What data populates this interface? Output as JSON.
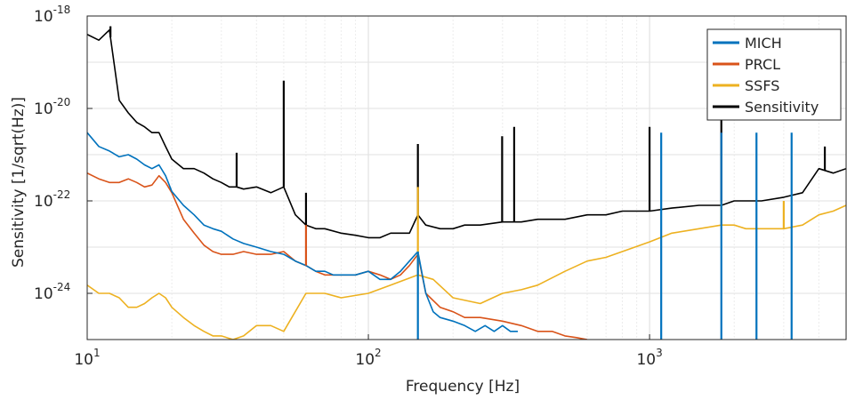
{
  "chart_data": {
    "type": "line",
    "title": "",
    "xlabel": "Frequency [Hz]",
    "ylabel": "Sensitivity [1/sqrt(Hz)]",
    "x_scale": "log",
    "y_scale": "log",
    "xlim": [
      10,
      5000
    ],
    "ylim": [
      1e-25,
      1e-18
    ],
    "grid": true,
    "legend_position": "top-right",
    "x_ticks": [
      {
        "value": 10,
        "base": "10",
        "exp": "1"
      },
      {
        "value": 100,
        "base": "10",
        "exp": "2"
      },
      {
        "value": 1000,
        "base": "10",
        "exp": "3"
      }
    ],
    "y_ticks": [
      {
        "value": 1e-24,
        "base": "10",
        "exp": "-24"
      },
      {
        "value": 1e-22,
        "base": "10",
        "exp": "-22"
      },
      {
        "value": 1e-20,
        "base": "10",
        "exp": "-20"
      },
      {
        "value": 1e-18,
        "base": "10",
        "exp": "-18"
      }
    ],
    "series": [
      {
        "name": "MICH",
        "color": "#0072BD",
        "x": [
          10,
          11,
          12,
          13,
          14,
          15,
          16,
          17,
          18,
          19,
          20,
          22,
          24,
          26,
          28,
          30,
          33,
          36,
          40,
          45,
          50,
          55,
          60,
          65,
          70,
          75,
          80,
          90,
          100,
          110,
          120,
          130,
          140,
          150,
          160,
          170,
          180,
          200,
          220,
          240,
          260,
          280,
          300,
          320,
          340
        ],
        "y": [
          3e-21,
          1.5e-21,
          1.2e-21,
          9e-22,
          1e-21,
          8e-22,
          6e-22,
          5e-22,
          6e-22,
          3.5e-22,
          1.6e-22,
          8e-23,
          5e-23,
          3e-23,
          2.5e-23,
          2.2e-23,
          1.5e-23,
          1.2e-23,
          1e-23,
          8e-24,
          7e-24,
          5e-24,
          4e-24,
          3e-24,
          3e-24,
          2.5e-24,
          2.5e-24,
          2.5e-24,
          3e-24,
          2e-24,
          2e-24,
          3e-24,
          5e-24,
          8e-24,
          1e-24,
          4e-25,
          3e-25,
          2.5e-25,
          2e-25,
          1.5e-25,
          2e-25,
          1.5e-25,
          2e-25,
          1.5e-25,
          1.5e-25
        ]
      },
      {
        "name": "PRCL",
        "color": "#D95319",
        "x": [
          10,
          11,
          12,
          13,
          14,
          15,
          16,
          17,
          18,
          19,
          20,
          22,
          24,
          26,
          28,
          30,
          33,
          36,
          40,
          45,
          50,
          55,
          60,
          65,
          70,
          80,
          90,
          100,
          110,
          120,
          130,
          140,
          150,
          160,
          180,
          200,
          220,
          250,
          300,
          350,
          400,
          450,
          500,
          550,
          600
        ],
        "y": [
          4e-22,
          3e-22,
          2.5e-22,
          2.5e-22,
          3e-22,
          2.5e-22,
          2e-22,
          2.2e-22,
          3.5e-22,
          2.5e-22,
          1.5e-22,
          4e-23,
          2e-23,
          1.1e-23,
          8e-24,
          7e-24,
          7e-24,
          8e-24,
          7e-24,
          7e-24,
          8e-24,
          5e-24,
          4e-24,
          3e-24,
          2.5e-24,
          2.5e-24,
          2.5e-24,
          3e-24,
          2.5e-24,
          2e-24,
          2.5e-24,
          4e-24,
          7e-24,
          1e-24,
          5e-25,
          4e-25,
          3e-25,
          3e-25,
          2.5e-25,
          2e-25,
          1.5e-25,
          1.5e-25,
          1.2e-25,
          1.1e-25,
          1e-25
        ]
      },
      {
        "name": "SSFS",
        "color": "#EDB120",
        "x": [
          10,
          11,
          12,
          13,
          14,
          15,
          16,
          17,
          18,
          19,
          20,
          22,
          24,
          26,
          28,
          30,
          33,
          36,
          40,
          45,
          50,
          60,
          70,
          80,
          100,
          120,
          150,
          170,
          200,
          250,
          300,
          350,
          400,
          500,
          600,
          700,
          800,
          1000,
          1200,
          1500,
          1800,
          2000,
          2200,
          2500,
          3000,
          3500,
          4000,
          4500,
          5000
        ],
        "y": [
          1.5e-24,
          1e-24,
          1e-24,
          8e-25,
          5e-25,
          5e-25,
          6e-25,
          8e-25,
          1e-24,
          8e-25,
          5e-25,
          3e-25,
          2e-25,
          1.5e-25,
          1.2e-25,
          1.2e-25,
          1e-25,
          1.2e-25,
          2e-25,
          2e-25,
          1.5e-25,
          1e-24,
          1e-24,
          8e-25,
          1e-24,
          1.5e-24,
          2.5e-24,
          2e-24,
          8e-25,
          6e-25,
          1e-24,
          1.2e-24,
          1.5e-24,
          3e-24,
          5e-24,
          6e-24,
          8e-24,
          1.3e-23,
          2e-23,
          2.5e-23,
          3e-23,
          3e-23,
          2.5e-23,
          2.5e-23,
          2.5e-23,
          3e-23,
          5e-23,
          6e-23,
          8e-23
        ]
      },
      {
        "name": "Sensitivity",
        "color": "#000000",
        "x": [
          10,
          11,
          12,
          13,
          14,
          15,
          16,
          17,
          18,
          19,
          20,
          22,
          24,
          26,
          28,
          30,
          32,
          34,
          36,
          40,
          45,
          50,
          55,
          60,
          65,
          70,
          80,
          90,
          100,
          110,
          120,
          140,
          150,
          160,
          180,
          200,
          220,
          250,
          300,
          350,
          400,
          500,
          600,
          700,
          800,
          1000,
          1200,
          1500,
          1800,
          2000,
          2500,
          3000,
          3500,
          4000,
          4500,
          5000
        ],
        "y": [
          4e-19,
          3e-19,
          5e-19,
          1.5e-20,
          8e-21,
          5e-21,
          4e-21,
          3e-21,
          3e-21,
          1.5e-21,
          8e-22,
          5e-22,
          5e-22,
          4e-22,
          3e-22,
          2.5e-22,
          2e-22,
          2e-22,
          1.8e-22,
          2e-22,
          1.5e-22,
          2e-22,
          5e-23,
          3e-23,
          2.5e-23,
          2.5e-23,
          2e-23,
          1.8e-23,
          1.6e-23,
          1.6e-23,
          2e-23,
          2e-23,
          5e-23,
          3e-23,
          2.5e-23,
          2.5e-23,
          3e-23,
          3e-23,
          3.5e-23,
          3.5e-23,
          4e-23,
          4e-23,
          5e-23,
          5e-23,
          6e-23,
          6e-23,
          7e-23,
          8e-23,
          8e-23,
          1e-22,
          1e-22,
          1.2e-22,
          1.5e-22,
          5e-22,
          4e-22,
          5e-22
        ]
      }
    ],
    "peaks": [
      {
        "series": "Sensitivity",
        "x": 12.1,
        "y": 6e-19
      },
      {
        "series": "Sensitivity",
        "x": 34,
        "y": 1.1e-21
      },
      {
        "series": "Sensitivity",
        "x": 50,
        "y": 4e-20
      },
      {
        "series": "Sensitivity",
        "x": 60,
        "y": 1.5e-22
      },
      {
        "series": "Sensitivity",
        "x": 150,
        "y": 1.7e-21
      },
      {
        "series": "Sensitivity",
        "x": 299,
        "y": 2.5e-21
      },
      {
        "series": "Sensitivity",
        "x": 330,
        "y": 4e-21
      },
      {
        "series": "Sensitivity",
        "x": 1000,
        "y": 4e-21
      },
      {
        "series": "Sensitivity",
        "x": 1800,
        "y": 1e-20
      },
      {
        "series": "Sensitivity",
        "x": 4200,
        "y": 1.5e-21
      },
      {
        "series": "SSFS",
        "x": 150,
        "y": 2e-22
      },
      {
        "series": "SSFS",
        "x": 1800,
        "y": 1e-22
      },
      {
        "series": "SSFS",
        "x": 3000,
        "y": 1e-22
      },
      {
        "series": "PRCL",
        "x": 60,
        "y": 3e-23
      },
      {
        "series": "MICH",
        "x": 150,
        "y": 1e-25
      },
      {
        "series": "MICH",
        "x": 1100,
        "y": 1e-25
      },
      {
        "series": "MICH",
        "x": 1800,
        "y": 1e-25
      },
      {
        "series": "MICH",
        "x": 2400,
        "y": 1e-25
      },
      {
        "series": "MICH",
        "x": 3200,
        "y": 1e-25
      }
    ]
  }
}
